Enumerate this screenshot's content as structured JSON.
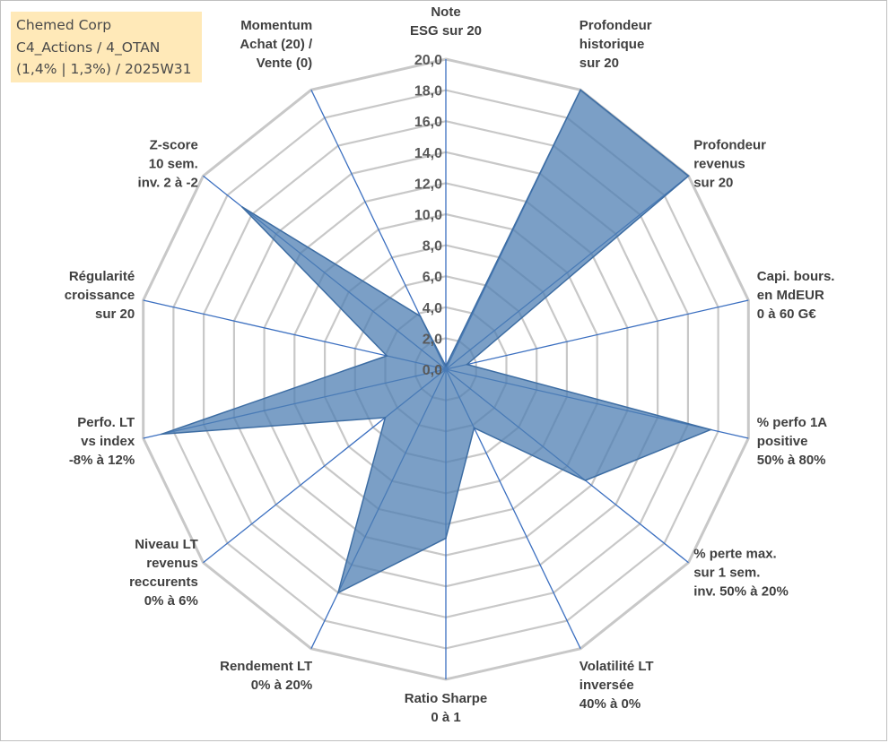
{
  "title": {
    "line1": "Chemed Corp",
    "line2": "C4_Actions / 4_OTAN",
    "line3": "(1,4% | 1,3%) / 2025W31"
  },
  "colors": {
    "fill": "#4f7fb3",
    "spoke": "#3b6fc0",
    "grid": "#c8c8c8",
    "title_bg": "#ffe9b8"
  },
  "chart_data": {
    "type": "radar",
    "rmin": 0,
    "rmax": 20,
    "tick_step": 2,
    "tick_labels": [
      "0,0",
      "2,0",
      "4,0",
      "6,0",
      "8,0",
      "10,0",
      "12,0",
      "14,0",
      "16,0",
      "18,0",
      "20,0"
    ],
    "axes": [
      {
        "lines": [
          "Note",
          "ESG sur 20"
        ],
        "value": 0.2
      },
      {
        "lines": [
          "Profondeur",
          "historique",
          "sur 20"
        ],
        "value": 20
      },
      {
        "lines": [
          "Profondeur",
          "revenus",
          "sur 20"
        ],
        "value": 20
      },
      {
        "lines": [
          "Capi. bours.",
          "en MdEUR",
          "0 à 60 G€"
        ],
        "value": 1.4
      },
      {
        "lines": [
          "% perfo 1A",
          "positive",
          "50% à 80%"
        ],
        "value": 17.5
      },
      {
        "lines": [
          "% perte max.",
          "sur 1 sem.",
          "inv. 50% à 20%"
        ],
        "value": 11.5
      },
      {
        "lines": [
          "Volatilité LT",
          "inversée",
          "40% à 0%"
        ],
        "value": 4.2
      },
      {
        "lines": [
          "Ratio Sharpe",
          "0 à 1"
        ],
        "value": 10.9
      },
      {
        "lines": [
          "Rendement LT",
          "0% à 20%"
        ],
        "value": 16.0
      },
      {
        "lines": [
          "Niveau LT",
          "revenus",
          "reccurents",
          "0% à 6%"
        ],
        "value": 5.0
      },
      {
        "lines": [
          "Perfo. LT",
          "vs index",
          "-8% à 12%"
        ],
        "value": 18.8
      },
      {
        "lines": [
          "Régularité",
          "croissance",
          "sur 20"
        ],
        "value": 3.9
      },
      {
        "lines": [
          "Z-score",
          "10 sem.",
          "inv. 2 à -2"
        ],
        "value": 16.8
      },
      {
        "lines": [
          "Momentum",
          "Achat (20) /",
          "Vente (0)"
        ],
        "value": 3.8
      }
    ]
  }
}
